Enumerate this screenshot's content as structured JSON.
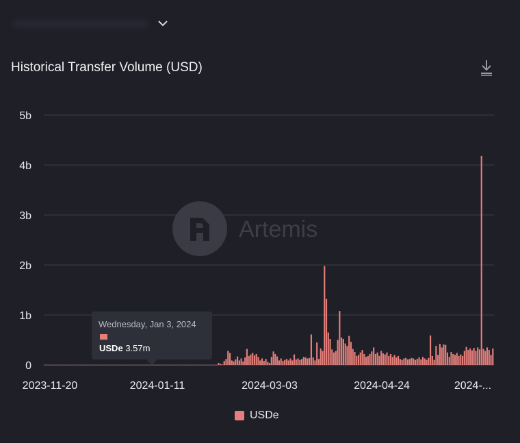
{
  "chart_title": "Historical Transfer Volume (USD)",
  "icons": {
    "dropdown": "chevron-down-icon",
    "download": "download-icon",
    "watermark": "artemis-logo"
  },
  "watermark": {
    "text": "Artemis"
  },
  "colors": {
    "background": "#1f1f27",
    "bar": "#e57f7a",
    "grid": "#3b3c46",
    "axis_text": "#e8e8ec"
  },
  "tooltip": {
    "date": "Wednesday, Jan 3, 2024",
    "series": "USDe",
    "value": "3.57m"
  },
  "chart_data": {
    "type": "bar",
    "ylim": [
      0,
      5000000000
    ],
    "y_ticks": [
      {
        "value": 0,
        "label": "0"
      },
      {
        "value": 1000000000,
        "label": "1b"
      },
      {
        "value": 2000000000,
        "label": "2b"
      },
      {
        "value": 3000000000,
        "label": "3b"
      },
      {
        "value": 4000000000,
        "label": "4b"
      },
      {
        "value": 5000000000,
        "label": "5b"
      }
    ],
    "x_ticks": [
      "2023-11-20",
      "2024-01-11",
      "2024-03-03",
      "2024-04-24",
      "2024-..."
    ],
    "grid": true,
    "legend_position": "bottom",
    "series": [
      {
        "name": "USDe",
        "color": "#e57f7a",
        "start_date": "2023-11-20",
        "values": [
          0.002,
          0.002,
          0.002,
          0.002,
          0.002,
          0.002,
          0.002,
          0.002,
          0.002,
          0.002,
          0.002,
          0.002,
          0.002,
          0.002,
          0.002,
          0.002,
          0.002,
          0.002,
          0.002,
          0.002,
          0.002,
          0.002,
          0.002,
          0.002,
          0.002,
          0.002,
          0.002,
          0.002,
          0.002,
          0.002,
          0.002,
          0.002,
          0.002,
          0.002,
          0.002,
          0.002,
          0.002,
          0.002,
          0.002,
          0.002,
          0.002,
          0.002,
          0.002,
          0.002,
          0.002,
          0.002,
          0.002,
          0.002,
          0.002,
          0.002,
          0.002,
          0.002,
          0.002,
          0.002,
          0.002,
          0.002,
          0.002,
          0.002,
          0.002,
          0.002,
          0.002,
          0.002,
          0.002,
          0.002,
          0.002,
          0.002,
          0.002,
          0.002,
          0.002,
          0.002,
          0.002,
          0.002,
          0.002,
          0.002,
          0.002,
          0.002,
          0.002,
          0.002,
          0.002,
          0.002,
          0.002,
          0.002,
          0.002,
          0.002,
          0.002,
          0.002,
          0.002,
          0.002,
          0.002,
          0.002,
          0.002,
          0.002,
          0.04,
          0.02,
          0.01,
          0.08,
          0.12,
          0.28,
          0.24,
          0.09,
          0.07,
          0.11,
          0.17,
          0.09,
          0.13,
          0.07,
          0.15,
          0.32,
          0.18,
          0.21,
          0.24,
          0.19,
          0.22,
          0.16,
          0.09,
          0.13,
          0.08,
          0.12,
          0.06,
          0.04,
          0.16,
          0.27,
          0.22,
          0.17,
          0.09,
          0.13,
          0.08,
          0.1,
          0.12,
          0.09,
          0.13,
          0.09,
          0.21,
          0.11,
          0.13,
          0.1,
          0.12,
          0.16,
          0.15,
          0.13,
          0.14,
          0.61,
          0.15,
          0.09,
          0.45,
          0.12,
          0.33,
          0.28,
          1.98,
          1.32,
          0.65,
          0.52,
          0.31,
          0.25,
          0.28,
          0.5,
          1.08,
          0.55,
          0.52,
          0.43,
          0.38,
          0.58,
          0.46,
          0.32,
          0.26,
          0.18,
          0.2,
          0.25,
          0.3,
          0.22,
          0.16,
          0.18,
          0.22,
          0.27,
          0.35,
          0.22,
          0.25,
          0.18,
          0.28,
          0.23,
          0.21,
          0.25,
          0.18,
          0.22,
          0.16,
          0.2,
          0.15,
          0.18,
          0.12,
          0.1,
          0.13,
          0.14,
          0.11,
          0.12,
          0.14,
          0.13,
          0.1,
          0.12,
          0.15,
          0.11,
          0.16,
          0.13,
          0.1,
          0.14,
          0.59,
          0.18,
          0.1,
          0.38,
          0.2,
          0.42,
          0.35,
          0.41,
          0.4,
          0.25,
          0.16,
          0.26,
          0.22,
          0.2,
          0.24,
          0.18,
          0.21,
          0.18,
          0.28,
          0.36,
          0.3,
          0.33,
          0.29,
          0.34,
          0.28,
          0.35,
          0.31,
          4.18,
          0.32,
          0.28,
          0.35,
          0.3,
          0.2,
          0.33
        ]
      }
    ]
  }
}
